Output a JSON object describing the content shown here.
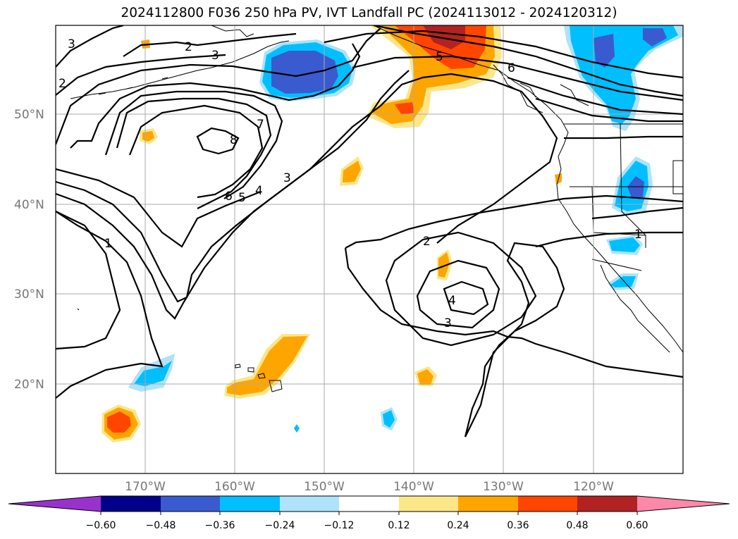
{
  "title": "2024112800 F036 250 hPa PV, IVT Landfall PC (2024113012 - 2024120312)",
  "map": {
    "lat_labels": [
      "50°N",
      "40°N",
      "30°N",
      "20°N"
    ],
    "lon_labels": [
      "170°W",
      "160°W",
      "150°W",
      "140°W",
      "130°W",
      "120°W"
    ],
    "contour_labels": [
      "3",
      "2",
      "3",
      "2",
      "5",
      "6",
      "7",
      "8",
      "6",
      "5",
      "4",
      "3",
      "1",
      "2",
      "4",
      "3",
      "1"
    ],
    "colors": {
      "neg_060": "#9932CC",
      "neg_048": "#00008B",
      "neg_036": "#3A5BCF",
      "neg_024": "#00BFFF",
      "neg_012": "#AEE3FA",
      "zero": "#FFFFFF",
      "pos_012": "#FBE78A",
      "pos_024": "#FFA500",
      "pos_036": "#FF4500",
      "pos_048": "#B22222",
      "pos_060": "#FF88AA"
    }
  },
  "colorbar": {
    "tick_labels": [
      "−0.60",
      "−0.48",
      "−0.36",
      "−0.24",
      "−0.12",
      "0.12",
      "0.24",
      "0.36",
      "0.48",
      "0.60"
    ]
  }
}
